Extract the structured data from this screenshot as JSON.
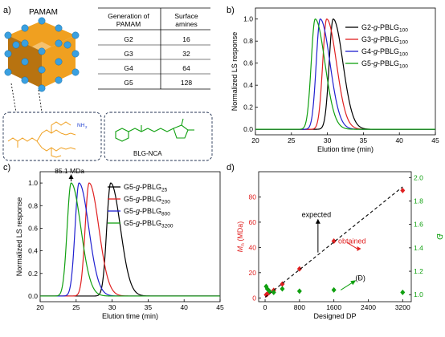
{
  "panel_labels": [
    "a)",
    "b)",
    "c)",
    "d)"
  ],
  "panel_a": {
    "title": "PAMAM",
    "table": {
      "headers": [
        [
          "Generation of",
          "PAMAM"
        ],
        [
          "Surface",
          "amines"
        ]
      ],
      "rows": [
        [
          "G2",
          "16"
        ],
        [
          "G3",
          "32"
        ],
        [
          "G4",
          "64"
        ],
        [
          "G5",
          "128"
        ]
      ]
    },
    "amine_label": "NH",
    "amine_sub": "2",
    "monomer_label": "BLG-NCA",
    "colors": {
      "sphere": "#f0a020",
      "sphere_dark": "#b87310",
      "bead": "#3aa0e0",
      "orange_struct": "#f0a020",
      "amine_blue": "#2040d0",
      "green_struct": "#10a010"
    }
  },
  "panel_b": {
    "legend": [
      {
        "pre": "G2-",
        "g": "g",
        "mid": "-PBLG",
        "sub": "100"
      },
      {
        "pre": "G3-",
        "g": "g",
        "mid": "-PBLG",
        "sub": "100"
      },
      {
        "pre": "G4-",
        "g": "g",
        "mid": "-PBLG",
        "sub": "100"
      },
      {
        "pre": "G5-",
        "g": "g",
        "mid": "-PBLG",
        "sub": "100"
      }
    ]
  },
  "panel_c": {
    "annotation": "85.1 MDa",
    "legend": [
      {
        "pre": "G5-",
        "g": "g",
        "mid": "-PBLG",
        "sub": "25"
      },
      {
        "pre": "G5-",
        "g": "g",
        "mid": "-PBLG",
        "sub": "200"
      },
      {
        "pre": "G5-",
        "g": "g",
        "mid": "-PBLG",
        "sub": "800"
      },
      {
        "pre": "G5-",
        "g": "g",
        "mid": "-PBLG",
        "sub": "3200"
      }
    ]
  },
  "panel_d": {
    "ylabel_left_main": "M",
    "ylabel_left_sub": "n",
    "ylabel_left_unit": " (MDa)",
    "ylabel_right": "Đ",
    "ann_expected": "expected",
    "ann_obtained": "obtained",
    "ann_dispersity": "(Đ)"
  },
  "chart_data": [
    {
      "type": "line",
      "xlabel": "Elution time (min)",
      "ylabel": "Normalized LS response",
      "xlim": [
        20,
        45
      ],
      "ylim": [
        -0.05,
        1.1
      ],
      "xticks": [
        20,
        25,
        30,
        35,
        40,
        45
      ],
      "yticks": [
        0.0,
        0.2,
        0.4,
        0.6,
        0.8,
        1.0
      ],
      "series": [
        {
          "name": "G2-g-PBLG100",
          "color": "#000000",
          "peak_x": 30.8,
          "peak_y": 1.0
        },
        {
          "name": "G3-g-PBLG100",
          "color": "#e02020",
          "peak_x": 29.9,
          "peak_y": 1.0
        },
        {
          "name": "G4-g-PBLG100",
          "color": "#2020d0",
          "peak_x": 29.0,
          "peak_y": 1.0
        },
        {
          "name": "G5-g-PBLG100",
          "color": "#10a010",
          "peak_x": 28.3,
          "peak_y": 1.0
        }
      ]
    },
    {
      "type": "line",
      "xlabel": "Elution time (min)",
      "ylabel": "Normalized LS response",
      "xlim": [
        20,
        45
      ],
      "ylim": [
        -0.05,
        1.1
      ],
      "xticks": [
        20,
        25,
        30,
        35,
        40,
        45
      ],
      "yticks": [
        0.0,
        0.2,
        0.4,
        0.6,
        0.8,
        1.0
      ],
      "series": [
        {
          "name": "G5-g-PBLG25",
          "color": "#000000",
          "peak_x": 29.8,
          "peak_y": 1.0
        },
        {
          "name": "G5-g-PBLG200",
          "color": "#e02020",
          "peak_x": 26.8,
          "peak_y": 1.0
        },
        {
          "name": "G5-g-PBLG800",
          "color": "#2020d0",
          "peak_x": 25.4,
          "peak_y": 1.0
        },
        {
          "name": "G5-g-PBLG3200",
          "color": "#10a010",
          "peak_x": 24.3,
          "peak_y": 1.0
        }
      ]
    },
    {
      "type": "scatter",
      "xlabel": "Designed DP",
      "xlim": [
        -150,
        3400
      ],
      "xticks": [
        0,
        800,
        1600,
        2400,
        3200
      ],
      "y_left": {
        "lim": [
          -3,
          100
        ],
        "ticks": [
          0,
          20,
          40,
          60,
          80
        ],
        "color": "#e02020"
      },
      "y_right": {
        "lim": [
          0.94,
          2.05
        ],
        "ticks": [
          1.0,
          1.2,
          1.4,
          1.6,
          1.8,
          2.0
        ],
        "color": "#10a010"
      },
      "series": [
        {
          "name": "Mn",
          "axis": "left",
          "color": "#e02020",
          "marker": "diamond",
          "x": [
            25,
            50,
            100,
            200,
            400,
            800,
            1600,
            3200
          ],
          "y": [
            2.5,
            3.0,
            4.5,
            6.0,
            11.0,
            23.0,
            45.0,
            85.1
          ]
        },
        {
          "name": "expected",
          "axis": "left",
          "color": "#000000",
          "style": "dashed",
          "x": [
            0,
            3200
          ],
          "y": [
            0.5,
            88
          ]
        },
        {
          "name": "Đ",
          "axis": "right",
          "color": "#10a010",
          "marker": "diamond",
          "x": [
            25,
            50,
            100,
            200,
            400,
            800,
            1600,
            3200
          ],
          "y": [
            1.07,
            1.05,
            1.03,
            1.02,
            1.05,
            1.03,
            1.04,
            1.02
          ]
        }
      ]
    }
  ]
}
